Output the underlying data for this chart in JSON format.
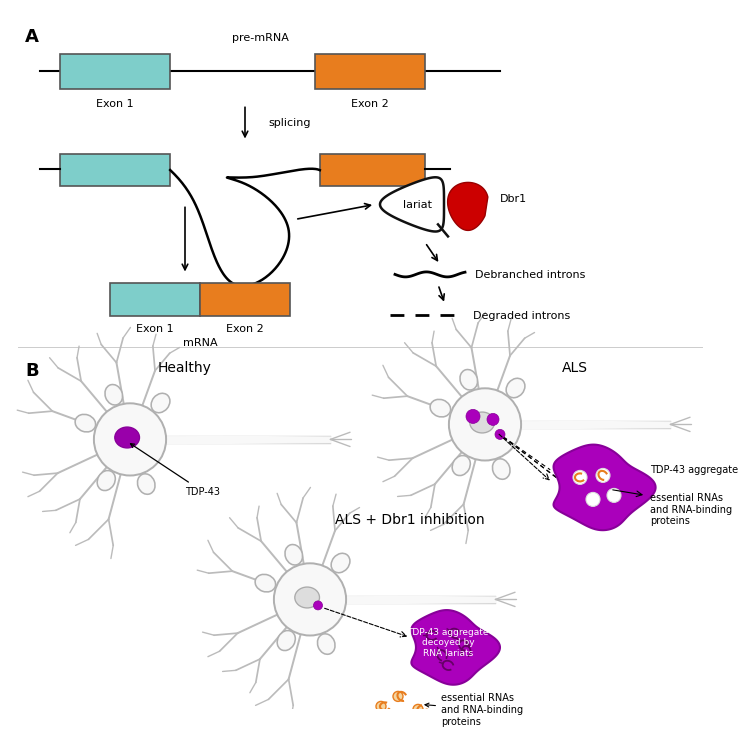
{
  "bg_color": "#ffffff",
  "panel_A_label": "A",
  "panel_B_label": "B",
  "exon1_color": "#7ECECA",
  "exon2_color": "#E87D1E",
  "exon_edge_color": "#555555",
  "lariat_fill": "#ffffff",
  "lariat_edge": "#111111",
  "dbr1_color": "#cc0000",
  "dbr1_edge": "#990000",
  "neuron_soma_fill": "#f8f8f8",
  "neuron_soma_edge": "#aaaaaa",
  "neuron_dendrite_color": "#bbbbbb",
  "axon_color": "#bbbbbb",
  "nucleus_healthy_fill": "#9900aa",
  "nucleus_als_fill": "#dddddd",
  "nucleus_als3_fill": "#dddddd",
  "tdp43_dot_fill": "#aa00bb",
  "agg_fill": "#aa00bb",
  "agg_edge": "#880099",
  "agg2_fill": "#aa00bb",
  "agg2_edge": "#880099",
  "lariat_loop_color": "#660066",
  "white_circle_fill": "#ffffff",
  "orange_shape_color": "#E87D1E",
  "orange_circle_fill": "#f5d5a0",
  "pre_mRNA_label": "pre-mRNA",
  "splicing_label": "splicing",
  "mRNA_label": "mRNA",
  "exon1_label": "Exon 1",
  "exon2_label": "Exon 2",
  "lariat_label": "lariat",
  "dbr1_label": "Dbr1",
  "debranched_label": "Debranched introns",
  "degraded_label": "Degraded introns",
  "healthy_label": "Healthy",
  "als_label": "ALS",
  "als_dbr1_label": "ALS + Dbr1 inhibition",
  "tdp43_label": "TDP-43",
  "tdp43_agg_label": "TDP-43 aggregate",
  "essential_rna_label1": "essential RNAs\nand RNA-binding\nproteins",
  "essential_rna_label2": "essential RNAs\nand RNA-binding\nproteins",
  "decoy_label": "TDP-43 aggregate\ndecoyed by\nRNA lariats"
}
